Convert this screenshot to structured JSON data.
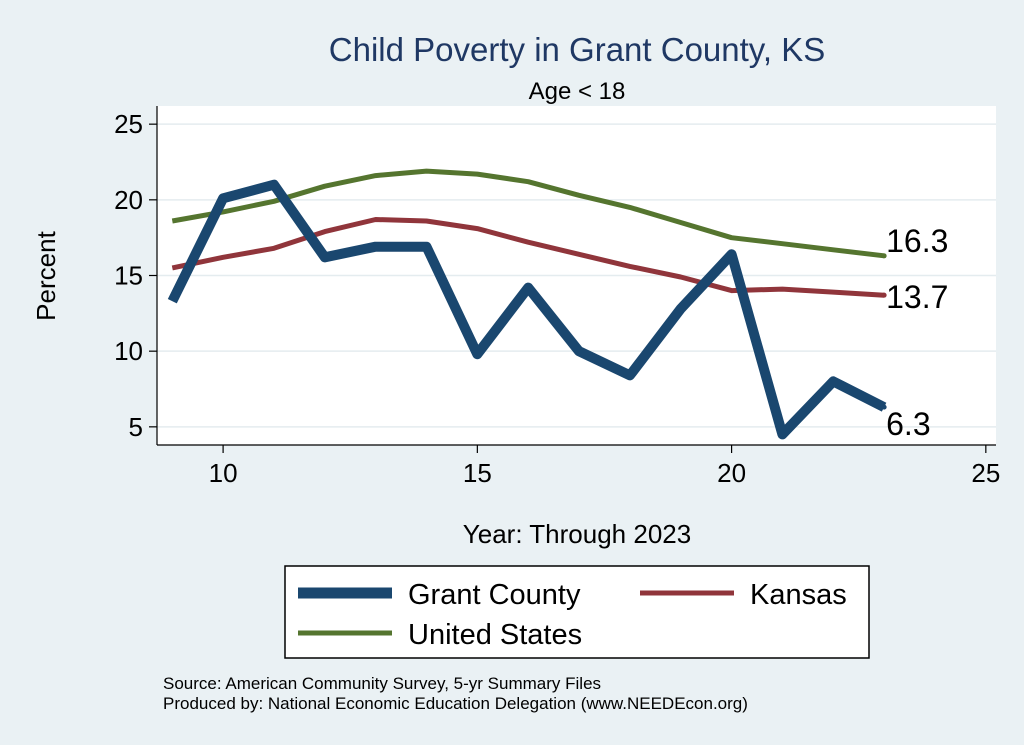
{
  "chart_data": {
    "type": "line",
    "title": "Child Poverty in Grant County, KS",
    "subtitle": "Age < 18",
    "xlabel": "Year: Through 2023",
    "ylabel": "Percent",
    "xlim": [
      8.7,
      25.2
    ],
    "ylim": [
      3.8,
      26.2
    ],
    "xticks": [
      10,
      15,
      20,
      25
    ],
    "yticks": [
      5,
      10,
      15,
      20,
      25
    ],
    "grid": true,
    "legend_position": "bottom",
    "series": [
      {
        "name": "Grant County",
        "color": "#1a476f",
        "x": [
          9,
          10,
          11,
          12,
          13,
          14,
          15,
          16,
          17,
          18,
          19,
          20,
          21,
          22,
          23
        ],
        "values": [
          13.3,
          20.1,
          21.0,
          16.2,
          16.9,
          16.9,
          9.8,
          14.2,
          10.0,
          8.4,
          12.8,
          16.4,
          4.5,
          8.0,
          6.3
        ],
        "end_label": "6.3"
      },
      {
        "name": "Kansas",
        "color": "#90353b",
        "x": [
          9,
          10,
          11,
          12,
          13,
          14,
          15,
          16,
          17,
          18,
          19,
          20,
          21,
          22,
          23
        ],
        "values": [
          15.5,
          16.2,
          16.8,
          17.9,
          18.7,
          18.6,
          18.1,
          17.2,
          16.4,
          15.6,
          14.9,
          14.0,
          14.1,
          13.9,
          13.7
        ],
        "end_label": "13.7"
      },
      {
        "name": "United States",
        "color": "#55752f",
        "x": [
          9,
          10,
          11,
          12,
          13,
          14,
          15,
          16,
          17,
          18,
          19,
          20,
          21,
          22,
          23
        ],
        "values": [
          18.6,
          19.2,
          19.9,
          20.9,
          21.6,
          21.9,
          21.7,
          21.2,
          20.3,
          19.5,
          18.5,
          17.5,
          17.1,
          16.7,
          16.3
        ],
        "end_label": "16.3"
      }
    ]
  },
  "source_note": "Source: American Community Survey, 5-yr Summary Files",
  "producer_note": "Produced by: National Economic Education Delegation (www.NEEDEcon.org)"
}
